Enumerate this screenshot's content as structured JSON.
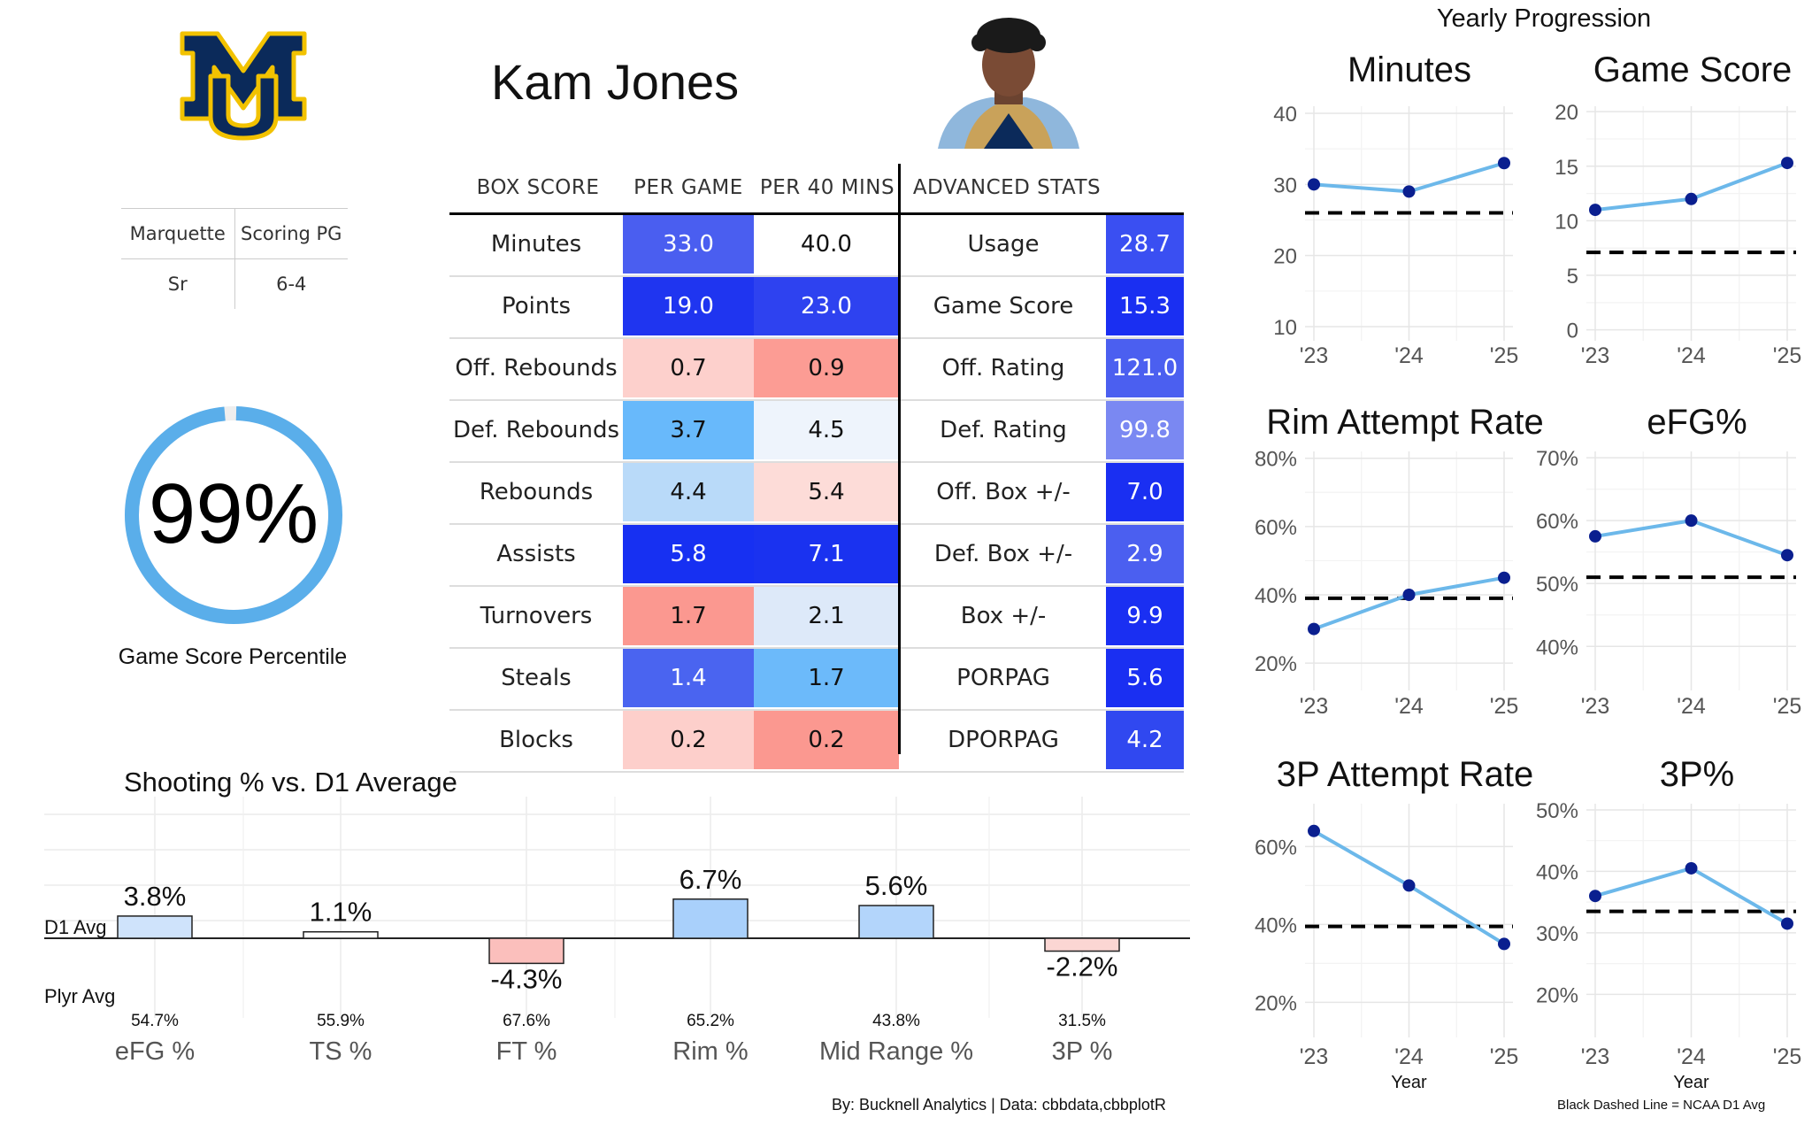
{
  "player": {
    "name": "Kam Jones"
  },
  "info": {
    "team": "Marquette",
    "role": "Scoring PG",
    "class": "Sr",
    "height": "6-4"
  },
  "percentile": {
    "value_label": "99%",
    "value": 99,
    "label": "Game Score Percentile"
  },
  "colors": {
    "ring": "#5aaeea",
    "line": "#6cb8ea",
    "point": "#0a1f8f"
  },
  "table": {
    "headers": {
      "box_score": "BOX SCORE",
      "per_game": "PER GAME",
      "per_40": "PER 40 MINS",
      "advanced": "ADVANCED STATS"
    },
    "rows": [
      {
        "stat": "Minutes",
        "per_game": "33.0",
        "pg_color": "#4a5ef0",
        "pg_text": "#ffffff",
        "per_40": "40.0",
        "p40_color": "#ffffff",
        "p40_text": "#111111",
        "adv": "Usage",
        "adv_val": "28.7",
        "adv_color": "#3a4ff2",
        "adv_text": "#ffffff"
      },
      {
        "stat": "Points",
        "per_game": "19.0",
        "pg_color": "#1f35f0",
        "pg_text": "#ffffff",
        "per_40": "23.0",
        "p40_color": "#2e42f0",
        "p40_text": "#ffffff",
        "adv": "Game Score",
        "adv_val": "15.3",
        "adv_color": "#1a2ff2",
        "adv_text": "#ffffff"
      },
      {
        "stat": "Off. Rebounds",
        "per_game": "0.7",
        "pg_color": "#fdd0cc",
        "pg_text": "#111111",
        "per_40": "0.9",
        "p40_color": "#fc9c94",
        "p40_text": "#111111",
        "adv": "Off. Rating",
        "adv_val": "121.0",
        "adv_color": "#4b5ff0",
        "adv_text": "#ffffff"
      },
      {
        "stat": "Def. Rebounds",
        "per_game": "3.7",
        "pg_color": "#68b9fb",
        "pg_text": "#111111",
        "per_40": "4.5",
        "p40_color": "#eef4fc",
        "p40_text": "#111111",
        "adv": "Def. Rating",
        "adv_val": "99.8",
        "adv_color": "#7a88f2",
        "adv_text": "#ffffff"
      },
      {
        "stat": "Rebounds",
        "per_game": "4.4",
        "pg_color": "#b9daf9",
        "pg_text": "#111111",
        "per_40": "5.4",
        "p40_color": "#fddcd8",
        "p40_text": "#111111",
        "adv": "Off. Box +/-",
        "adv_val": "7.0",
        "adv_color": "#1a2ff2",
        "adv_text": "#ffffff"
      },
      {
        "stat": "Assists",
        "per_game": "5.8",
        "pg_color": "#1730f2",
        "pg_text": "#ffffff",
        "per_40": "7.1",
        "p40_color": "#1a32f0",
        "p40_text": "#ffffff",
        "adv": "Def. Box +/-",
        "adv_val": "2.9",
        "adv_color": "#4b5ff0",
        "adv_text": "#ffffff"
      },
      {
        "stat": "Turnovers",
        "per_game": "1.7",
        "pg_color": "#fb9890",
        "pg_text": "#111111",
        "per_40": "2.1",
        "p40_color": "#dde9f9",
        "p40_text": "#111111",
        "adv": "Box +/-",
        "adv_val": "9.9",
        "adv_color": "#1a2ff2",
        "adv_text": "#ffffff"
      },
      {
        "stat": "Steals",
        "per_game": "1.4",
        "pg_color": "#4a64f0",
        "pg_text": "#ffffff",
        "per_40": "1.7",
        "p40_color": "#6cbafa",
        "p40_text": "#111111",
        "adv": "PORPAG",
        "adv_val": "5.6",
        "adv_color": "#1a2ff2",
        "adv_text": "#ffffff"
      },
      {
        "stat": "Blocks",
        "per_game": "0.2",
        "pg_color": "#fdcfcb",
        "pg_text": "#111111",
        "per_40": "0.2",
        "p40_color": "#fb9890",
        "p40_text": "#111111",
        "adv": "DPORPAG",
        "adv_val": "4.2",
        "adv_color": "#3048f0",
        "adv_text": "#ffffff"
      }
    ]
  },
  "chart_data": [
    {
      "type": "bar",
      "title": "Shooting % vs. D1 Average",
      "categories": [
        "eFG %",
        "TS %",
        "FT %",
        "Rim %",
        "Mid Range %",
        "3P %"
      ],
      "values": [
        3.8,
        1.1,
        -4.3,
        6.7,
        5.6,
        -2.2
      ],
      "value_labels": [
        "3.8%",
        "1.1%",
        "-4.3%",
        "6.7%",
        "5.6%",
        "-2.2%"
      ],
      "player_values": [
        "54.7%",
        "55.9%",
        "67.6%",
        "65.2%",
        "43.8%",
        "31.5%"
      ],
      "bar_colors": [
        "#cfe3fb",
        "#ffffff",
        "#fbbfbc",
        "#a9d0fb",
        "#b3d5fb",
        "#fbd6d3"
      ],
      "baseline_label": "D1 Avg",
      "player_row_label": "Plyr Avg",
      "ylim": [
        -5,
        10
      ]
    },
    {
      "type": "line",
      "section_title": "Yearly Progression",
      "title": "Minutes",
      "x": [
        "'23",
        "'24",
        "'25"
      ],
      "values": [
        30,
        29,
        33
      ],
      "d1_avg": 26,
      "ylim": [
        8,
        41
      ],
      "yticks": [
        10,
        20,
        30,
        40
      ],
      "yticklabels": [
        "10",
        "20",
        "30",
        "40"
      ]
    },
    {
      "type": "line",
      "title": "Game Score",
      "x": [
        "'23",
        "'24",
        "'25"
      ],
      "values": [
        11,
        12,
        15.3
      ],
      "d1_avg": 7.1,
      "ylim": [
        -1,
        20.5
      ],
      "yticks": [
        0,
        5,
        10,
        15,
        20
      ],
      "yticklabels": [
        "0",
        "5",
        "10",
        "15",
        "20"
      ]
    },
    {
      "type": "line",
      "title": "Rim Attempt Rate",
      "x": [
        "'23",
        "'24",
        "'25"
      ],
      "values": [
        30,
        40,
        45
      ],
      "d1_avg": 39,
      "ylim": [
        12,
        82
      ],
      "yticks": [
        20,
        40,
        60,
        80
      ],
      "yticklabels": [
        "20%",
        "40%",
        "60%",
        "80%"
      ]
    },
    {
      "type": "line",
      "title": "eFG%",
      "x": [
        "'23",
        "'24",
        "'25"
      ],
      "values": [
        57.5,
        60,
        54.5
      ],
      "d1_avg": 51,
      "ylim": [
        33,
        71
      ],
      "yticks": [
        40,
        50,
        60,
        70
      ],
      "yticklabels": [
        "40%",
        "50%",
        "60%",
        "70%"
      ]
    },
    {
      "type": "line",
      "title": "3P Attempt Rate",
      "x": [
        "'23",
        "'24",
        "'25"
      ],
      "values": [
        64,
        50,
        35
      ],
      "d1_avg": 39.5,
      "ylim": [
        11,
        71
      ],
      "yticks": [
        20,
        40,
        60
      ],
      "yticklabels": [
        "20%",
        "40%",
        "60%"
      ],
      "xlabel": "Year"
    },
    {
      "type": "line",
      "title": "3P%",
      "x": [
        "'23",
        "'24",
        "'25"
      ],
      "values": [
        36,
        40.5,
        31.5
      ],
      "d1_avg": 33.5,
      "ylim": [
        13,
        51
      ],
      "yticks": [
        20,
        30,
        40,
        50
      ],
      "yticklabels": [
        "20%",
        "30%",
        "40%",
        "50%"
      ],
      "xlabel": "Year"
    }
  ],
  "credits": {
    "left": "By: Bucknell Analytics | Data: cbbdata,cbbplotR",
    "right": "Black Dashed Line = NCAA D1 Avg"
  }
}
